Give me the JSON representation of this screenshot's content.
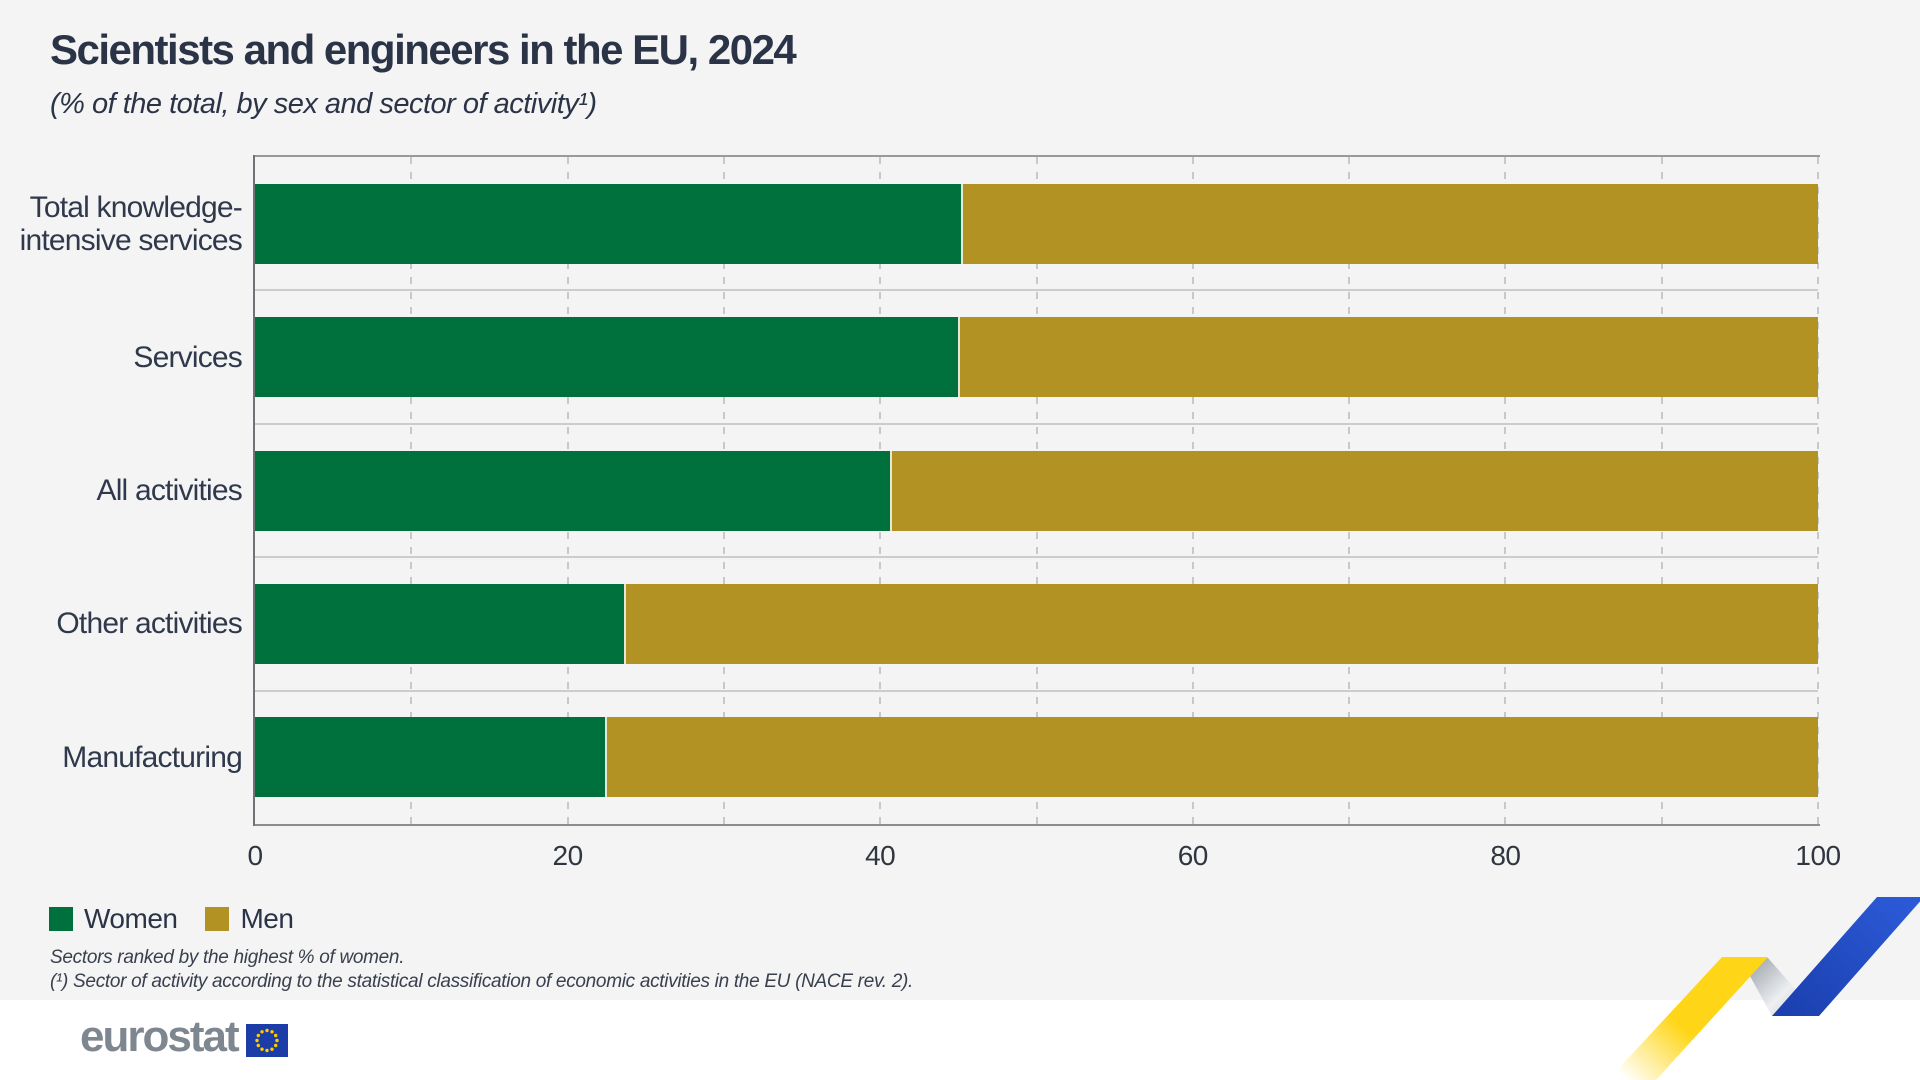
{
  "page": {
    "title": "Scientists and engineers in the EU, 2024",
    "subtitle": "(% of the total, by sex and sector of activity¹)",
    "footnotes": [
      "Sectors ranked by the highest % of women.",
      "(¹) Sector of activity according to the statistical classification of economic activities in the EU (NACE rev. 2)."
    ],
    "logo_text": "eurostat"
  },
  "chart_data": {
    "type": "bar",
    "orientation": "horizontal",
    "stacked": true,
    "unit": "% of the total",
    "categories": [
      "Total knowledge-intensive services",
      "Services",
      "All activities",
      "Other activities",
      "Manufacturing"
    ],
    "category_lines": [
      [
        "Total knowledge-",
        "intensive services"
      ],
      [
        "Services"
      ],
      [
        "All activities"
      ],
      [
        "Other activities"
      ],
      [
        "Manufacturing"
      ]
    ],
    "series": [
      {
        "name": "Women",
        "color": "#00713C",
        "values": [
          45.2,
          45.0,
          40.6,
          23.6,
          22.4
        ]
      },
      {
        "name": "Men",
        "color": "#B19222",
        "values": [
          54.8,
          55.0,
          59.4,
          76.4,
          77.6
        ]
      }
    ],
    "xlim": [
      0,
      100
    ],
    "xticks": [
      0,
      20,
      40,
      60,
      80,
      100
    ],
    "grid_interval": 10,
    "grid_style": "dashed-vertical",
    "legend_position": "bottom-left",
    "sort_note": "Sectors ranked by the highest % of women."
  },
  "colors": {
    "background": "#F4F4F5",
    "footer_background": "#FFFFFF",
    "text_dark": "#2B3447",
    "logo_gray": "#7E8790",
    "eu_flag_blue": "#1C3CA8",
    "eu_flag_stars": "#FFCC00",
    "ribbon_yellow": "#FFD617",
    "ribbon_blue": "#2454C7",
    "ribbon_silver": "#C7CAD0"
  }
}
